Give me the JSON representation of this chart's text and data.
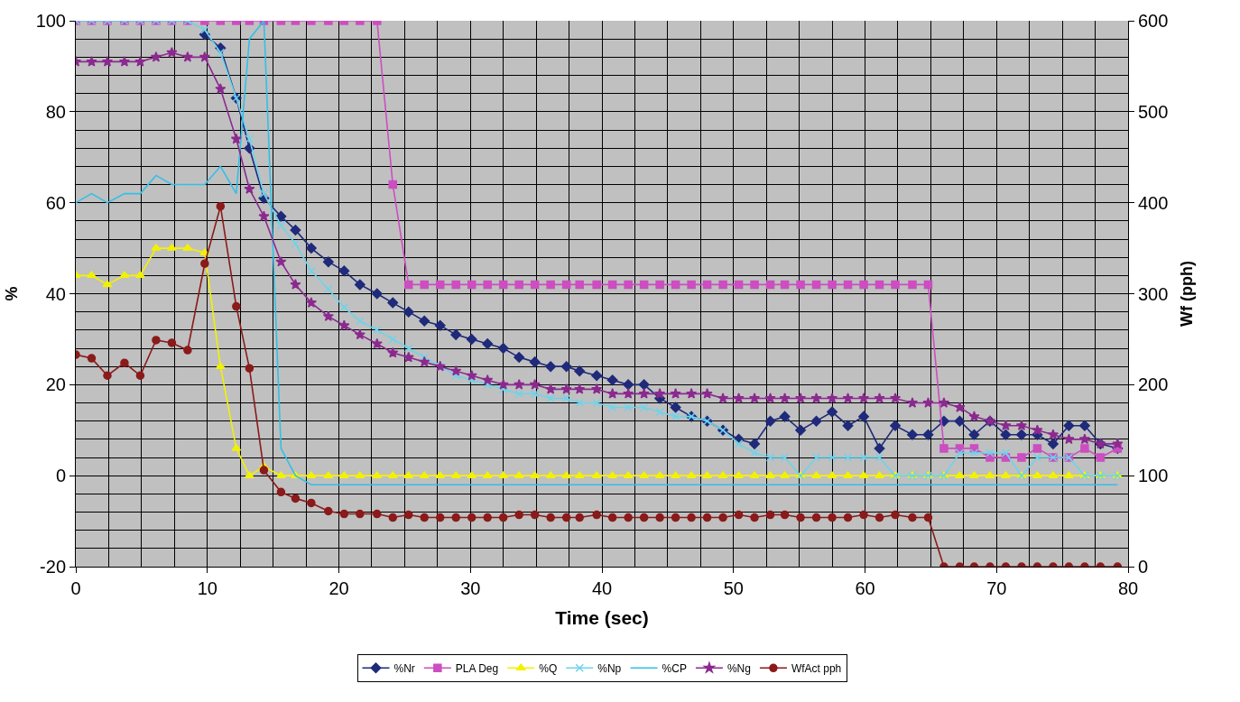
{
  "chart_data": {
    "type": "line",
    "xlabel": "Time (sec)",
    "ylabel": "%",
    "y2label": "Wf (pph)",
    "x": [
      0,
      1.2,
      2.4,
      3.7,
      4.9,
      6.1,
      7.3,
      8.5,
      9.8,
      11.0,
      12.2,
      13.2,
      14.3,
      15.6,
      16.7,
      17.9,
      19.2,
      20.4,
      21.6,
      22.9,
      24.1,
      25.3,
      26.5,
      27.7,
      28.9,
      30.1,
      31.3,
      32.5,
      33.7,
      34.9,
      36.1,
      37.3,
      38.3,
      39.6,
      40.8,
      42.0,
      43.2,
      44.4,
      45.6,
      46.8,
      48.0,
      49.2,
      50.4,
      51.6,
      52.8,
      53.9,
      55.1,
      56.3,
      57.5,
      58.7,
      59.9,
      61.1,
      62.3,
      63.6,
      64.8,
      66.0,
      67.2,
      68.3,
      69.5,
      70.7,
      71.9,
      73.1,
      74.3,
      75.5,
      76.7,
      77.9,
      79.2
    ],
    "series": [
      {
        "name": "%Nr",
        "color": "#1f2a7a",
        "marker": "diamond",
        "values": [
          null,
          null,
          null,
          null,
          null,
          null,
          null,
          null,
          97,
          94,
          83,
          72,
          61,
          57,
          54,
          50,
          47,
          45,
          42,
          40,
          38,
          36,
          34,
          33,
          31,
          30,
          29,
          28,
          26,
          25,
          24,
          24,
          23,
          22,
          21,
          20,
          20,
          17,
          15,
          13,
          12,
          10,
          8,
          7,
          12,
          13,
          10,
          12,
          14,
          11,
          13,
          6,
          11,
          9,
          9,
          12,
          12,
          9,
          12,
          9,
          9,
          9,
          7,
          11,
          11,
          7,
          6
        ]
      },
      {
        "name": "PLA Deg",
        "color": "#cc4ec0",
        "marker": "square",
        "values": [
          100,
          100,
          100,
          100,
          100,
          100,
          100,
          100,
          100,
          100,
          100,
          100,
          100,
          100,
          100,
          100,
          100,
          100,
          100,
          100,
          64,
          42,
          42,
          42,
          42,
          42,
          42,
          42,
          42,
          42,
          42,
          42,
          42,
          42,
          42,
          42,
          42,
          42,
          42,
          42,
          42,
          42,
          42,
          42,
          42,
          42,
          42,
          42,
          42,
          42,
          42,
          42,
          42,
          42,
          42,
          6,
          6,
          6,
          4,
          4,
          4,
          6,
          4,
          4,
          6,
          4,
          6
        ]
      },
      {
        "name": "%Q",
        "color": "#f2f200",
        "marker": "triangle",
        "values": [
          44,
          44,
          42,
          44,
          44,
          50,
          50,
          50,
          49,
          24,
          6,
          0,
          2,
          0,
          0,
          0,
          0,
          0,
          0,
          0,
          0,
          0,
          0,
          0,
          0,
          0,
          0,
          0,
          0,
          0,
          0,
          0,
          0,
          0,
          0,
          0,
          0,
          0,
          0,
          0,
          0,
          0,
          0,
          0,
          0,
          0,
          0,
          0,
          0,
          0,
          0,
          0,
          0,
          0,
          0,
          0,
          0,
          0,
          0,
          0,
          0,
          0,
          0,
          0,
          0,
          0,
          0
        ]
      },
      {
        "name": "%Np",
        "color": "#6fd3ea",
        "marker": "cross",
        "values": [
          100,
          100,
          100,
          100,
          100,
          100,
          100,
          100,
          98,
          93,
          83,
          74,
          62,
          55,
          51,
          45,
          41,
          37,
          34,
          32,
          30,
          28,
          26,
          24,
          22,
          21,
          20,
          19,
          18,
          18,
          17,
          17,
          16,
          16,
          15,
          15,
          15,
          14,
          13,
          13,
          12,
          10,
          7,
          5,
          4,
          4,
          0,
          4,
          4,
          4,
          4,
          4,
          0,
          0,
          0,
          0,
          5,
          5,
          5,
          5,
          0,
          4,
          4,
          4,
          0,
          0,
          0
        ]
      },
      {
        "name": "%CP",
        "color": "#33bfe8",
        "marker": "none",
        "values": [
          60,
          62,
          60,
          62,
          62,
          66,
          64,
          64,
          64,
          68,
          62,
          96,
          100,
          6,
          0,
          -2,
          -2,
          -2,
          -2,
          -2,
          -2,
          -2,
          -2,
          -2,
          -2,
          -2,
          -2,
          -2,
          -2,
          -2,
          -2,
          -2,
          -2,
          -2,
          -2,
          -2,
          -2,
          -2,
          -2,
          -2,
          -2,
          -2,
          -2,
          -2,
          -2,
          -2,
          -2,
          -2,
          -2,
          -2,
          -2,
          -2,
          -2,
          -2,
          -2,
          -2,
          -2,
          -2,
          -2,
          -2,
          -2,
          -2,
          -2,
          -2,
          -2,
          -2,
          -2
        ]
      },
      {
        "name": "%Ng",
        "color": "#8b2a8f",
        "marker": "star",
        "values": [
          91,
          91,
          91,
          91,
          91,
          92,
          93,
          92,
          92,
          85,
          74,
          63,
          57,
          47,
          42,
          38,
          35,
          33,
          31,
          29,
          27,
          26,
          25,
          24,
          23,
          22,
          21,
          20,
          20,
          20,
          19,
          19,
          19,
          19,
          18,
          18,
          18,
          18,
          18,
          18,
          18,
          17,
          17,
          17,
          17,
          17,
          17,
          17,
          17,
          17,
          17,
          17,
          17,
          16,
          16,
          16,
          15,
          13,
          12,
          11,
          11,
          10,
          9,
          8,
          8,
          7,
          7
        ]
      },
      {
        "name": "WfAct pph",
        "color": "#8b1a1a",
        "marker": "circle",
        "axis": "y2",
        "values": [
          233,
          229,
          210,
          224,
          210,
          249,
          246,
          238,
          333,
          396,
          286,
          218,
          106,
          82,
          75,
          70,
          61,
          58,
          58,
          58,
          54,
          57,
          54,
          54,
          54,
          54,
          54,
          54,
          57,
          57,
          54,
          54,
          54,
          57,
          54,
          54,
          54,
          54,
          54,
          54,
          54,
          54,
          57,
          54,
          57,
          57,
          54,
          54,
          54,
          54,
          57,
          54,
          57,
          54,
          54,
          0,
          0,
          0,
          0,
          0,
          0,
          0,
          0,
          0,
          0,
          0,
          0
        ]
      }
    ],
    "xlim": [
      0,
      80
    ],
    "xticks": [
      0,
      10,
      20,
      30,
      40,
      50,
      60,
      70,
      80
    ],
    "ylim": [
      -20,
      100
    ],
    "yticks": [
      -20,
      0,
      20,
      40,
      60,
      80,
      100
    ],
    "y2lim": [
      0,
      600
    ],
    "y2ticks": [
      0,
      100,
      200,
      300,
      400,
      500,
      600
    ],
    "grid": true,
    "legend": "bottom",
    "line_style": "solid"
  }
}
